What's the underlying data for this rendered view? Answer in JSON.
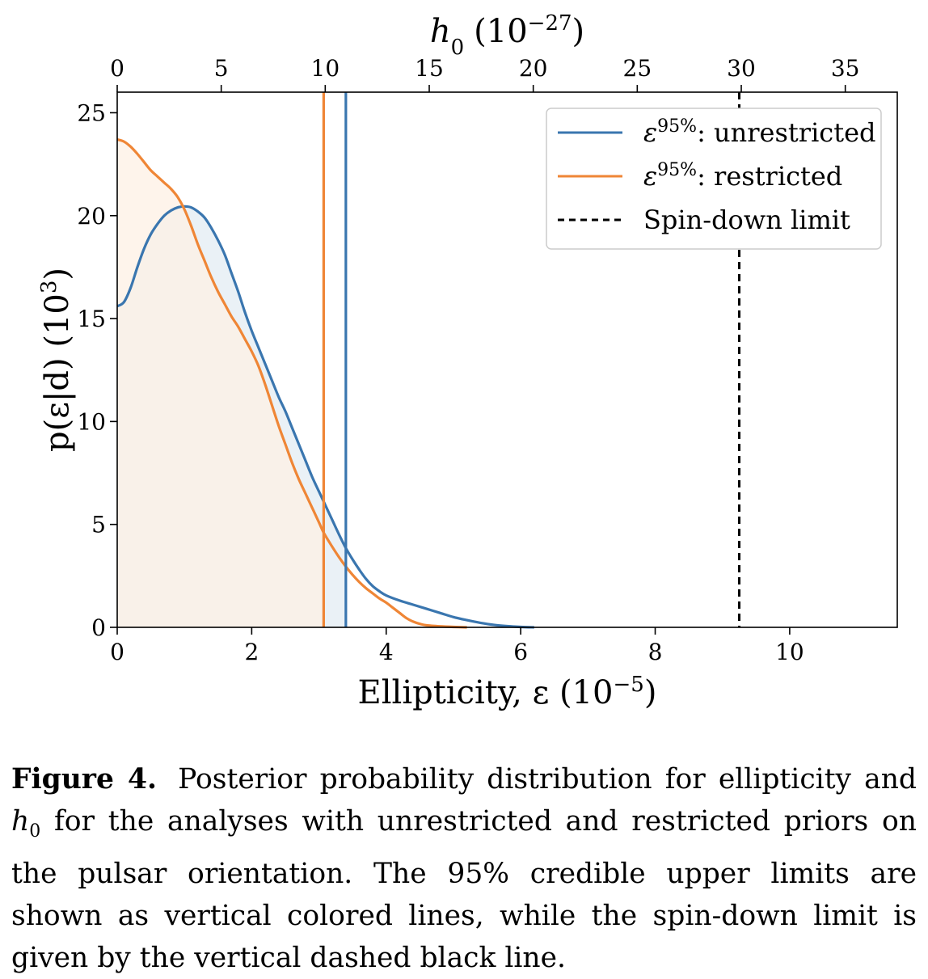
{
  "chart_data": {
    "type": "area",
    "xlabel": "Ellipticity, ε (10",
    "xlabel_exp": "−5",
    "xlabel_close": ")",
    "top_xlabel": "h",
    "top_xlabel_sub": "0",
    "top_xlabel_unit": "(10",
    "top_xlabel_exp": "−27",
    "top_xlabel_close": ")",
    "ylabel": "p(ε|d) (10",
    "ylabel_exp": "3",
    "ylabel_close": ")",
    "xlim": [
      0,
      11.6
    ],
    "ylim": [
      0,
      26
    ],
    "top_xlim": [
      0,
      37.5
    ],
    "x_ticks": [
      0,
      2,
      4,
      6,
      8,
      10
    ],
    "x_tick_labels": [
      "0",
      "2",
      "4",
      "6",
      "8",
      "10"
    ],
    "top_x_ticks": [
      0,
      5,
      10,
      15,
      20,
      25,
      30,
      35
    ],
    "top_x_tick_labels": [
      "0",
      "5",
      "10",
      "15",
      "20",
      "25",
      "30",
      "35"
    ],
    "y_ticks": [
      0,
      5,
      10,
      15,
      20,
      25
    ],
    "y_tick_labels": [
      "0",
      "5",
      "10",
      "15",
      "20",
      "25"
    ],
    "grid": false,
    "legend_position": "top-right",
    "series": [
      {
        "name": "unrestricted",
        "color": "#3a76af",
        "fill": "#e6eef5",
        "upper_limit": 3.4,
        "points": [
          [
            0.0,
            15.6
          ],
          [
            0.1,
            15.8
          ],
          [
            0.2,
            16.5
          ],
          [
            0.3,
            17.5
          ],
          [
            0.4,
            18.4
          ],
          [
            0.5,
            19.1
          ],
          [
            0.6,
            19.6
          ],
          [
            0.7,
            20.0
          ],
          [
            0.8,
            20.25
          ],
          [
            0.9,
            20.4
          ],
          [
            1.0,
            20.45
          ],
          [
            1.1,
            20.4
          ],
          [
            1.2,
            20.2
          ],
          [
            1.3,
            19.9
          ],
          [
            1.4,
            19.4
          ],
          [
            1.5,
            18.8
          ],
          [
            1.6,
            18.1
          ],
          [
            1.7,
            17.2
          ],
          [
            1.8,
            16.3
          ],
          [
            1.9,
            15.3
          ],
          [
            2.0,
            14.4
          ],
          [
            2.1,
            13.6
          ],
          [
            2.2,
            12.8
          ],
          [
            2.3,
            12.0
          ],
          [
            2.4,
            11.2
          ],
          [
            2.5,
            10.5
          ],
          [
            2.6,
            9.7
          ],
          [
            2.7,
            8.9
          ],
          [
            2.8,
            8.1
          ],
          [
            2.9,
            7.3
          ],
          [
            3.0,
            6.6
          ],
          [
            3.1,
            5.9
          ],
          [
            3.2,
            5.2
          ],
          [
            3.3,
            4.5
          ],
          [
            3.4,
            3.85
          ],
          [
            3.5,
            3.3
          ],
          [
            3.6,
            2.8
          ],
          [
            3.7,
            2.35
          ],
          [
            3.8,
            2.0
          ],
          [
            3.9,
            1.75
          ],
          [
            4.0,
            1.55
          ],
          [
            4.2,
            1.3
          ],
          [
            4.4,
            1.1
          ],
          [
            4.6,
            0.9
          ],
          [
            4.8,
            0.7
          ],
          [
            5.0,
            0.5
          ],
          [
            5.2,
            0.35
          ],
          [
            5.4,
            0.22
          ],
          [
            5.6,
            0.12
          ],
          [
            5.8,
            0.06
          ],
          [
            6.0,
            0.02
          ],
          [
            6.2,
            0.0
          ]
        ]
      },
      {
        "name": "restricted",
        "color": "#ef8636",
        "fill": "#fdf0e4",
        "upper_limit": 3.07,
        "points": [
          [
            0.0,
            23.7
          ],
          [
            0.1,
            23.6
          ],
          [
            0.2,
            23.35
          ],
          [
            0.3,
            23.0
          ],
          [
            0.4,
            22.6
          ],
          [
            0.5,
            22.2
          ],
          [
            0.6,
            21.9
          ],
          [
            0.7,
            21.6
          ],
          [
            0.8,
            21.3
          ],
          [
            0.9,
            20.9
          ],
          [
            1.0,
            20.3
          ],
          [
            1.1,
            19.5
          ],
          [
            1.2,
            18.6
          ],
          [
            1.3,
            17.8
          ],
          [
            1.4,
            17.0
          ],
          [
            1.5,
            16.3
          ],
          [
            1.6,
            15.7
          ],
          [
            1.7,
            15.1
          ],
          [
            1.8,
            14.6
          ],
          [
            1.9,
            14.0
          ],
          [
            2.0,
            13.4
          ],
          [
            2.1,
            12.7
          ],
          [
            2.2,
            11.8
          ],
          [
            2.3,
            10.8
          ],
          [
            2.4,
            9.8
          ],
          [
            2.5,
            8.9
          ],
          [
            2.6,
            8.0
          ],
          [
            2.7,
            7.2
          ],
          [
            2.8,
            6.5
          ],
          [
            2.9,
            5.8
          ],
          [
            3.0,
            5.1
          ],
          [
            3.07,
            4.6
          ],
          [
            3.2,
            3.9
          ],
          [
            3.3,
            3.4
          ],
          [
            3.4,
            2.95
          ],
          [
            3.5,
            2.55
          ],
          [
            3.6,
            2.2
          ],
          [
            3.7,
            1.9
          ],
          [
            3.8,
            1.65
          ],
          [
            3.9,
            1.4
          ],
          [
            4.0,
            1.2
          ],
          [
            4.1,
            0.95
          ],
          [
            4.2,
            0.7
          ],
          [
            4.3,
            0.45
          ],
          [
            4.4,
            0.28
          ],
          [
            4.5,
            0.17
          ],
          [
            4.6,
            0.1
          ],
          [
            4.8,
            0.05
          ],
          [
            5.0,
            0.02
          ],
          [
            5.2,
            0.0
          ]
        ]
      }
    ],
    "spin_down_limit": 9.25,
    "legend": [
      {
        "label": "ε",
        "sup": "95%",
        "rest": ": unrestricted",
        "color": "#3a76af",
        "style": "solid"
      },
      {
        "label": "ε",
        "sup": "95%",
        "rest": ": restricted",
        "color": "#ef8636",
        "style": "solid"
      },
      {
        "label": "Spin-down limit",
        "sup": "",
        "rest": "",
        "color": "#000000",
        "style": "dashed"
      }
    ]
  },
  "caption": {
    "label": "Figure 4.",
    "text_part1": "Posterior probability distribution for ellipticity and ",
    "h": "h",
    "h_sub": "0",
    "text_part2": " for the analyses with unrestricted and restricted priors on the pulsar orientation. The 95% credible upper limits are shown as vertical colored lines, while the spin-down limit is given by the vertical dashed black line."
  }
}
